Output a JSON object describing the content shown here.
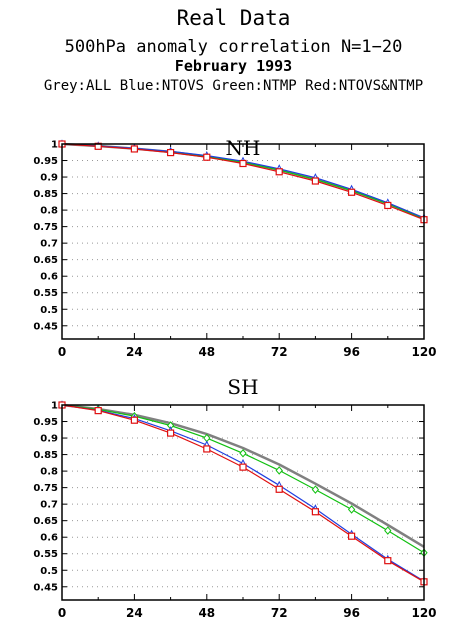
{
  "header": {
    "title": "Real Data",
    "subtitle": "500hPa anomaly correlation N=1−20",
    "date": "February 1993",
    "legend": "Grey:ALL  Blue:NTOVS  Green:NTMP  Red:NTOVS&NTMP"
  },
  "colors": {
    "ALL": "#808080",
    "NTOVS": "#1f3fe0",
    "NTMP": "#10c010",
    "NTOVS&NTMP": "#e01010"
  },
  "chart_data": [
    {
      "type": "line",
      "title": "NH",
      "x": [
        0,
        12,
        24,
        36,
        48,
        60,
        72,
        84,
        96,
        108,
        120
      ],
      "xticks": [
        "0",
        "24",
        "48",
        "72",
        "96",
        "120"
      ],
      "yticks": [
        "1",
        "0.95",
        "0.9",
        "0.85",
        "0.8",
        "0.75",
        "0.7",
        "0.65",
        "0.6",
        "0.55",
        "0.5",
        "0.45"
      ],
      "xlim": [
        0,
        120
      ],
      "ylim": [
        0.41,
        1.0
      ],
      "grid": true,
      "series": [
        {
          "name": "ALL",
          "color": "#808080",
          "marker": "none",
          "values": [
            1.0,
            0.994,
            0.986,
            0.976,
            0.962,
            0.945,
            0.922,
            0.894,
            0.86,
            0.82,
            0.775
          ]
        },
        {
          "name": "NTMP",
          "color": "#10c010",
          "marker": "none",
          "values": [
            1.0,
            0.994,
            0.986,
            0.976,
            0.962,
            0.945,
            0.921,
            0.893,
            0.859,
            0.819,
            0.774
          ]
        },
        {
          "name": "NTOVS",
          "color": "#1f3fe0",
          "marker": "triangle",
          "values": [
            1.0,
            0.994,
            0.987,
            0.978,
            0.965,
            0.948,
            0.925,
            0.898,
            0.863,
            0.822,
            0.776
          ]
        },
        {
          "name": "NTOVS&NTMP",
          "color": "#e01010",
          "marker": "square",
          "values": [
            1.0,
            0.993,
            0.985,
            0.974,
            0.96,
            0.941,
            0.916,
            0.888,
            0.854,
            0.814,
            0.771
          ]
        }
      ]
    },
    {
      "type": "line",
      "title": "SH",
      "x": [
        0,
        12,
        24,
        36,
        48,
        60,
        72,
        84,
        96,
        108,
        120
      ],
      "xticks": [
        "0",
        "24",
        "48",
        "72",
        "96",
        "120"
      ],
      "yticks": [
        "1",
        "0.95",
        "0.9",
        "0.85",
        "0.8",
        "0.75",
        "0.7",
        "0.65",
        "0.6",
        "0.55",
        "0.5",
        "0.45"
      ],
      "xlim": [
        0,
        120
      ],
      "ylim": [
        0.41,
        1.0
      ],
      "grid": true,
      "series": [
        {
          "name": "ALL",
          "color": "#808080",
          "marker": "none",
          "values": [
            1.0,
            0.988,
            0.97,
            0.945,
            0.912,
            0.87,
            0.82,
            0.762,
            0.702,
            0.637,
            0.571
          ]
        },
        {
          "name": "NTMP",
          "color": "#10c010",
          "marker": "diamond",
          "values": [
            1.0,
            0.987,
            0.966,
            0.938,
            0.9,
            0.854,
            0.802,
            0.744,
            0.684,
            0.62,
            0.553
          ]
        },
        {
          "name": "NTOVS",
          "color": "#1f3fe0",
          "marker": "triangle",
          "values": [
            1.0,
            0.984,
            0.959,
            0.922,
            0.879,
            0.823,
            0.757,
            0.686,
            0.609,
            0.533,
            0.467
          ]
        },
        {
          "name": "NTOVS&NTMP",
          "color": "#e01010",
          "marker": "square",
          "values": [
            1.0,
            0.983,
            0.954,
            0.915,
            0.867,
            0.812,
            0.745,
            0.677,
            0.603,
            0.529,
            0.465
          ]
        }
      ]
    }
  ]
}
